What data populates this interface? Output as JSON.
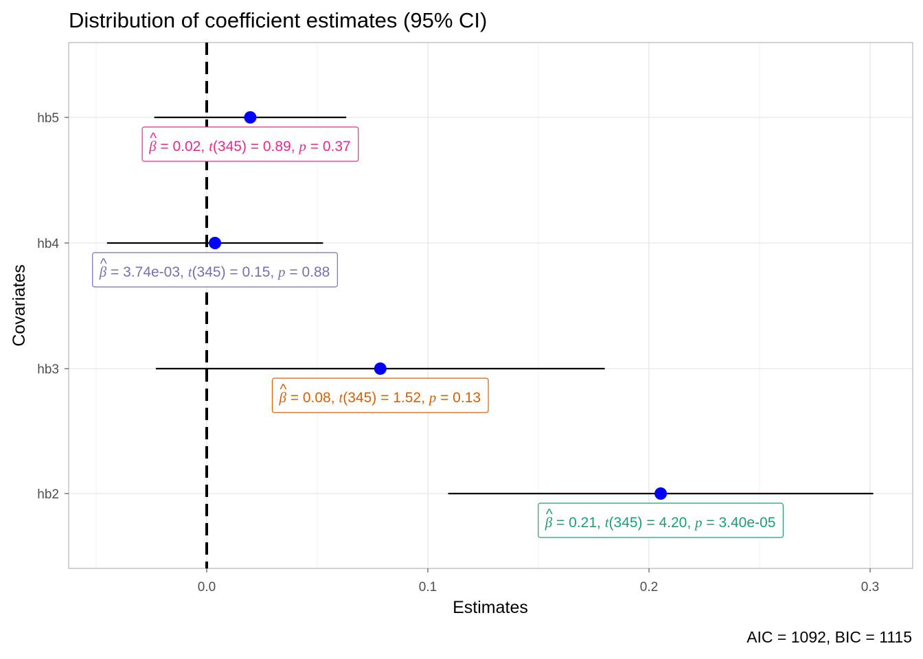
{
  "chart_data": {
    "type": "scatter",
    "title": "Distribution of coefficient estimates (95% CI)",
    "xlabel": "Estimates",
    "ylabel": "Covariates",
    "caption": "AIC = 1092, BIC = 1115",
    "xlim": [
      -0.062,
      0.318
    ],
    "x_ticks": [
      0.0,
      0.1,
      0.2,
      0.3
    ],
    "x_tick_labels": [
      "0.0",
      "0.1",
      "0.2",
      "0.3"
    ],
    "grid": true,
    "reference_line": 0,
    "point_color": "#0000ff",
    "categories": [
      "hb5",
      "hb4",
      "hb3",
      "hb2"
    ],
    "series": [
      {
        "covariate": "hb5",
        "estimate": 0.0197,
        "ci_low": -0.0237,
        "ci_high": 0.0631,
        "color": "#e7298a",
        "label": {
          "beta": "0.02",
          "df": "345",
          "t": "0.89",
          "p": "0.37"
        }
      },
      {
        "covariate": "hb4",
        "estimate": 0.00374,
        "ci_low": -0.0451,
        "ci_high": 0.0526,
        "color": "#7570b3",
        "label": {
          "beta": "3.74e-03",
          "df": "345",
          "t": "0.15",
          "p": "0.88"
        }
      },
      {
        "covariate": "hb3",
        "estimate": 0.0785,
        "ci_low": -0.023,
        "ci_high": 0.18,
        "color": "#d95f02",
        "label": {
          "beta": "0.08",
          "df": "345",
          "t": "1.52",
          "p": "0.13"
        }
      },
      {
        "covariate": "hb2",
        "estimate": 0.2053,
        "ci_low": 0.1092,
        "ci_high": 0.3014,
        "color": "#1b9e77",
        "label": {
          "beta": "0.21",
          "df": "345",
          "t": "4.20",
          "p": "3.40e-05"
        }
      }
    ]
  }
}
